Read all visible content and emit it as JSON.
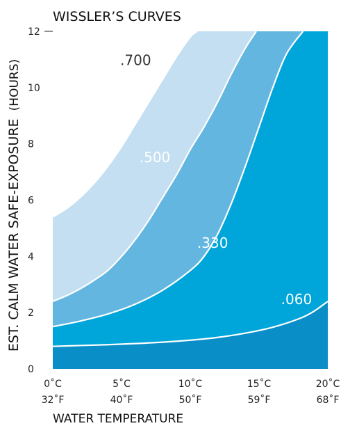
{
  "chart_data": {
    "type": "area",
    "title": "WISSLER’S CURVES",
    "xlabel": "WATER TEMPERATURE",
    "ylabel": "EST. CALM WATER SAFE-EXPOSURE",
    "ylabel_unit": "(HOURS)",
    "xlim": [
      0,
      20
    ],
    "ylim": [
      0,
      12
    ],
    "y_ticks": [
      "0",
      "2",
      "4",
      "6",
      "8",
      "10",
      "12"
    ],
    "x_ticks": [
      {
        "c": "0˚C",
        "f": "32˚F"
      },
      {
        "c": "5˚C",
        "f": "40˚F"
      },
      {
        "c": "10˚C",
        "f": "50˚F"
      },
      {
        "c": "15˚C",
        "f": "59˚F"
      },
      {
        "c": "20˚C",
        "f": "68˚F"
      }
    ],
    "colors": {
      "background": "#0a8ec7",
      "band_060_330": "#00a6d9",
      "band_330_500": "#63b6e0",
      "band_500_700": "#c3dff1",
      "line": "#ffffff",
      "label_dark": "#333333",
      "label_light": "#ffffff"
    },
    "series": [
      {
        "name": ".060",
        "x": [
          0,
          2,
          4,
          6,
          8,
          10,
          12,
          14,
          16,
          18,
          19,
          20
        ],
        "y": [
          0.8,
          0.83,
          0.86,
          0.9,
          0.95,
          1.02,
          1.12,
          1.27,
          1.48,
          1.8,
          2.05,
          2.4
        ]
      },
      {
        "name": ".330",
        "x": [
          0,
          2,
          4,
          6,
          8,
          10,
          11,
          12,
          13,
          14,
          15,
          16,
          17,
          18.2
        ],
        "y": [
          1.5,
          1.7,
          1.95,
          2.3,
          2.8,
          3.5,
          4.0,
          4.8,
          5.9,
          7.2,
          8.6,
          10.0,
          11.2,
          12.0
        ]
      },
      {
        "name": ".500",
        "x": [
          0,
          1,
          2,
          3,
          4,
          5,
          6,
          7,
          8,
          9,
          10,
          11,
          12,
          13,
          14,
          14.8
        ],
        "y": [
          2.4,
          2.6,
          2.85,
          3.15,
          3.5,
          4.0,
          4.6,
          5.3,
          6.1,
          6.9,
          7.8,
          8.6,
          9.5,
          10.5,
          11.4,
          12.0
        ]
      },
      {
        "name": ".700",
        "x": [
          0,
          1,
          2,
          3,
          4,
          5,
          6,
          7,
          8,
          9,
          10,
          10.5
        ],
        "y": [
          5.4,
          5.7,
          6.1,
          6.6,
          7.2,
          7.9,
          8.7,
          9.5,
          10.3,
          11.1,
          11.8,
          12.0
        ]
      }
    ],
    "labels": [
      {
        "text": ".060",
        "x": 16.6,
        "y": 2.3,
        "tone": "light"
      },
      {
        "text": ".330",
        "x": 10.5,
        "y": 4.3,
        "tone": "light"
      },
      {
        "text": ".500",
        "x": 6.3,
        "y": 7.35,
        "tone": "light"
      },
      {
        "text": ".700",
        "x": 4.9,
        "y": 10.8,
        "tone": "dark"
      }
    ]
  }
}
